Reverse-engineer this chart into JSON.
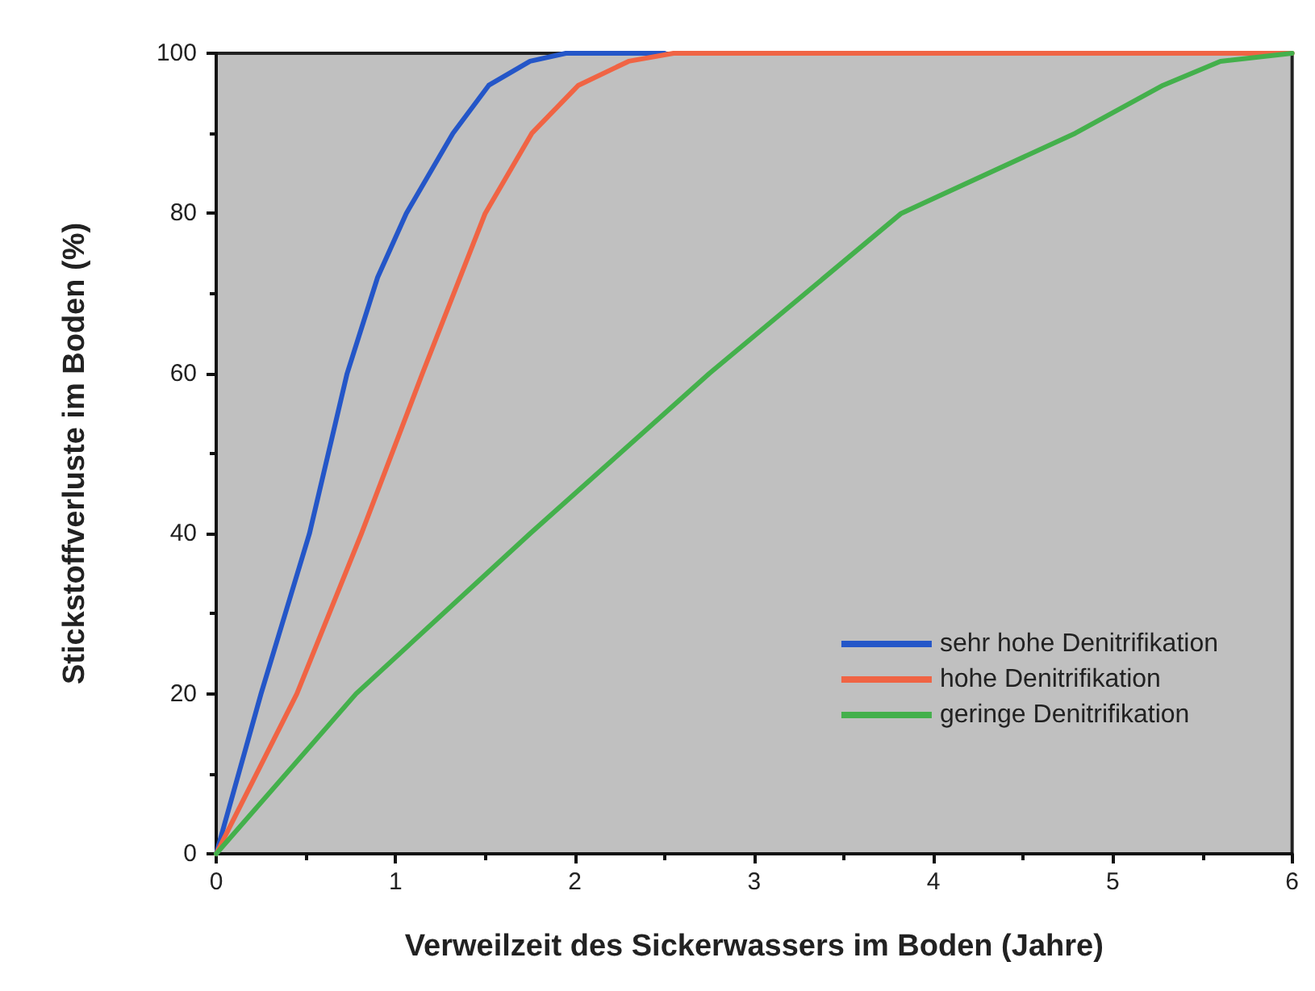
{
  "chart_data": {
    "type": "line",
    "xlabel": "Verweilzeit des Sickerwassers im Boden (Jahre)",
    "ylabel": "Stickstoffverluste im Boden (%)",
    "xlim": [
      0,
      6
    ],
    "xticks": [
      0,
      1,
      2,
      3,
      4,
      5,
      6
    ],
    "ylim": [
      0,
      100
    ],
    "yticks": [
      0,
      20,
      40,
      60,
      80,
      100
    ],
    "grid": false,
    "legend": "lower right",
    "marker": "none",
    "line_style": "solid",
    "series": [
      {
        "name": "sehr hohe Denitrifikation",
        "color": "#2456c8",
        "x": [
          0,
          0.25,
          0.52,
          0.73,
          0.9,
          1.06,
          1.32,
          1.52,
          1.75,
          1.95,
          2.5
        ],
        "values": [
          0,
          20,
          40,
          60,
          72,
          80,
          90,
          96,
          99,
          100,
          100
        ]
      },
      {
        "name": "hohe Denitrifikation",
        "color": "#f06444",
        "x": [
          0,
          0.45,
          0.81,
          1.15,
          1.5,
          1.76,
          2.02,
          2.3,
          2.55,
          6
        ],
        "values": [
          0,
          20,
          40,
          60,
          80,
          90,
          96,
          99,
          100,
          100
        ]
      },
      {
        "name": "geringe Denitrifikation",
        "color": "#44b04c",
        "x": [
          0,
          0.78,
          1.75,
          2.75,
          3.82,
          4.79,
          5.28,
          5.6,
          6
        ],
        "values": [
          0,
          20,
          40,
          60,
          80,
          90,
          96,
          99,
          100
        ]
      }
    ]
  }
}
